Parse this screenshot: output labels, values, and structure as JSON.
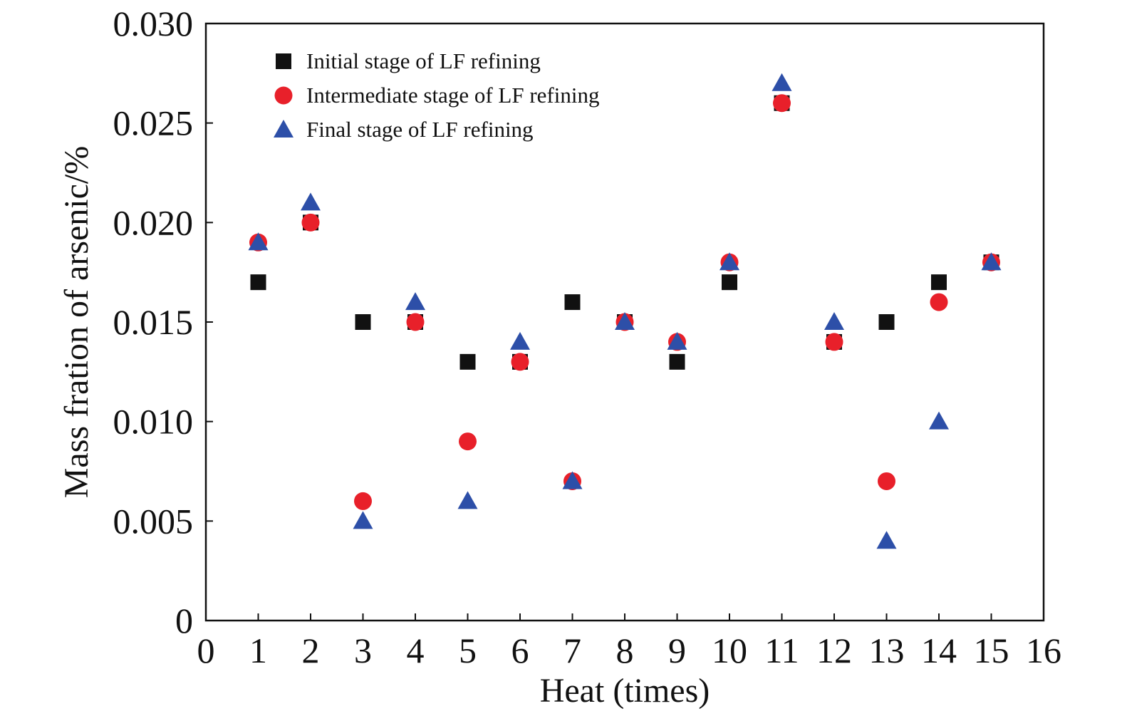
{
  "chart_data": {
    "type": "scatter",
    "xlabel": "Heat (times)",
    "ylabel": "Mass fration of arsenic/%",
    "xlim": [
      0,
      16
    ],
    "ylim": [
      0,
      0.03
    ],
    "x_ticks": [
      0,
      1,
      2,
      3,
      4,
      5,
      6,
      7,
      8,
      9,
      10,
      11,
      12,
      13,
      14,
      15,
      16
    ],
    "y_ticks": [
      0,
      0.005,
      0.01,
      0.015,
      0.02,
      0.025,
      0.03
    ],
    "x_tick_labels": [
      "0",
      "1",
      "2",
      "3",
      "4",
      "5",
      "6",
      "7",
      "8",
      "9",
      "10",
      "11",
      "12",
      "13",
      "14",
      "15",
      "16"
    ],
    "y_tick_labels": [
      "0",
      "0.005",
      "0.010",
      "0.015",
      "0.020",
      "0.025",
      "0.030"
    ],
    "grid": false,
    "legend_position": "top-left",
    "x": [
      1,
      2,
      3,
      4,
      5,
      6,
      7,
      8,
      9,
      10,
      11,
      12,
      13,
      14,
      15
    ],
    "series": [
      {
        "name": "Initial stage of LF refining",
        "marker": "square",
        "color": "#111111",
        "values": [
          0.017,
          0.02,
          0.015,
          0.015,
          0.013,
          0.013,
          0.016,
          0.015,
          0.013,
          0.017,
          0.026,
          0.014,
          0.015,
          0.017,
          0.018
        ]
      },
      {
        "name": "Intermediate stage of LF refining",
        "marker": "circle",
        "color": "#e8202a",
        "values": [
          0.019,
          0.02,
          0.006,
          0.015,
          0.009,
          0.013,
          0.007,
          0.015,
          0.014,
          0.018,
          0.026,
          0.014,
          0.007,
          0.016,
          0.018
        ]
      },
      {
        "name": "Final stage of LF refining",
        "marker": "triangle",
        "color": "#2d4fa8",
        "values": [
          0.019,
          0.021,
          0.005,
          0.016,
          0.006,
          0.014,
          0.007,
          0.015,
          0.014,
          0.018,
          0.027,
          0.015,
          0.004,
          0.01,
          0.018
        ]
      }
    ]
  }
}
